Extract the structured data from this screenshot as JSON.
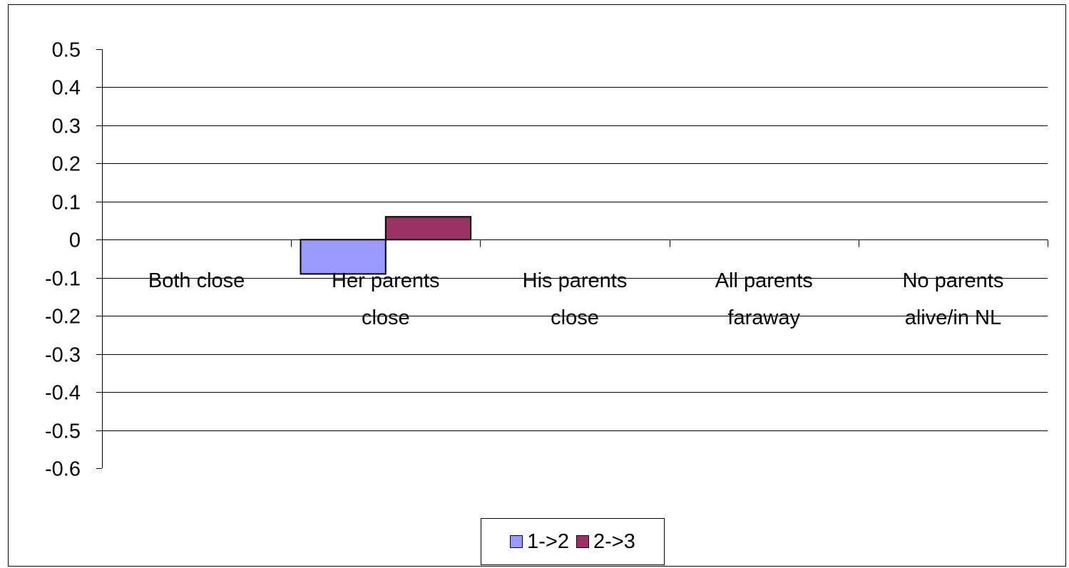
{
  "chart_data": {
    "type": "bar",
    "title": "",
    "xlabel": "",
    "ylabel": "",
    "categories": [
      [
        "Both close"
      ],
      [
        "Her parents",
        "close"
      ],
      [
        "His parents",
        "close"
      ],
      [
        "All parents",
        "faraway"
      ],
      [
        "No parents",
        "alive/in NL"
      ]
    ],
    "series": [
      {
        "name": "1->2",
        "color": "#9999FF",
        "values": [
          0,
          -0.09,
          0,
          0,
          0
        ]
      },
      {
        "name": "2->3",
        "color": "#993366",
        "values": [
          0,
          0.06,
          0,
          0,
          0
        ]
      }
    ],
    "ylim": [
      -0.6,
      0.5
    ],
    "yticks": [
      "0.5",
      "0.4",
      "0.3",
      "0.2",
      "0.1",
      "0",
      "-0.1",
      "-0.2",
      "-0.3",
      "-0.4",
      "-0.5",
      "-0.6"
    ],
    "grid": true,
    "legend_position": "bottom"
  }
}
